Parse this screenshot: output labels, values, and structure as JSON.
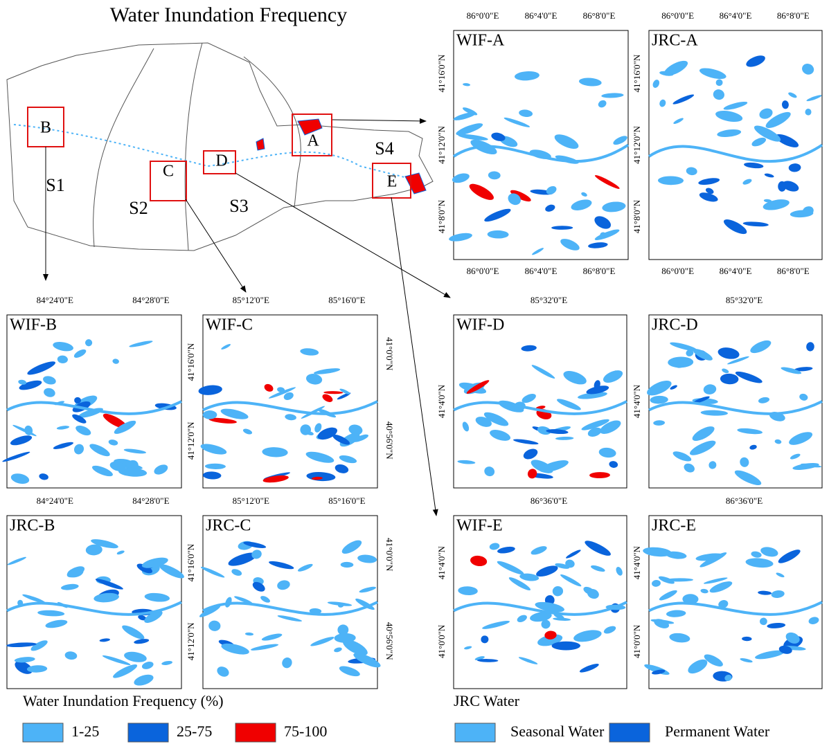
{
  "title": "Water Inundation Frequency",
  "overview": {
    "regions": [
      "S1",
      "S2",
      "S3",
      "S4"
    ],
    "boxes": [
      "A",
      "B",
      "C",
      "D",
      "E"
    ]
  },
  "panels": [
    {
      "label": "WIF-A",
      "top_ticks": [
        "86°0'0\"E",
        "86°4'0\"E",
        "86°8'0\"E"
      ],
      "bottom_ticks": [
        "86°0'0\"E",
        "86°4'0\"E",
        "86°8'0\"E"
      ],
      "left_ticks": [
        "41°16'0\"N",
        "41°12'0\"N",
        "41°8'0\"N"
      ],
      "right_ticks": []
    },
    {
      "label": "JRC-A",
      "top_ticks": [
        "86°0'0\"E",
        "86°4'0\"E",
        "86°8'0\"E"
      ],
      "bottom_ticks": [
        "86°0'0\"E",
        "86°4'0\"E",
        "86°8'0\"E"
      ],
      "left_ticks": [
        "41°16'0\"N",
        "41°12'0\"N",
        "41°8'0\"N"
      ],
      "right_ticks": []
    },
    {
      "label": "WIF-B",
      "top_ticks": [
        "84°24'0\"E",
        "84°28'0\"E"
      ],
      "bottom_ticks": [],
      "left_ticks": [],
      "right_ticks": []
    },
    {
      "label": "WIF-C",
      "top_ticks": [
        "85°12'0\"E",
        "85°16'0\"E"
      ],
      "bottom_ticks": [],
      "left_ticks": [
        "41°16'0\"N",
        "41°12'0\"N"
      ],
      "right_ticks": [
        "41°0'0\"N",
        "40°56'0\"N"
      ]
    },
    {
      "label": "JRC-B",
      "top_ticks": [
        "84°24'0\"E",
        "84°28'0\"E"
      ],
      "bottom_ticks": [],
      "left_ticks": [],
      "right_ticks": []
    },
    {
      "label": "JRC-C",
      "top_ticks": [
        "85°12'0\"E",
        "85°16'0\"E"
      ],
      "bottom_ticks": [],
      "left_ticks": [
        "41°16'0\"N",
        "41°12'0\"N"
      ],
      "right_ticks": [
        "41°0'0\"N",
        "40°56'0\"N"
      ]
    },
    {
      "label": "WIF-D",
      "top_ticks": [
        "85°32'0\"E"
      ],
      "bottom_ticks": [],
      "left_ticks": [
        "41°4'0\"N"
      ],
      "right_ticks": []
    },
    {
      "label": "JRC-D",
      "top_ticks": [
        "85°32'0\"E"
      ],
      "bottom_ticks": [],
      "left_ticks": [
        "41°4'0\"N"
      ],
      "right_ticks": []
    },
    {
      "label": "WIF-E",
      "top_ticks": [
        "86°36'0\"E"
      ],
      "bottom_ticks": [],
      "left_ticks": [
        "41°4'0\"N",
        "41°0'0\"N"
      ],
      "right_ticks": []
    },
    {
      "label": "JRC-E",
      "top_ticks": [
        "86°36'0\"E"
      ],
      "bottom_ticks": [],
      "left_ticks": [
        "41°4'0\"N",
        "41°0'0\"N"
      ],
      "right_ticks": []
    }
  ],
  "legends": [
    {
      "title": "Water Inundation Frequency (%)",
      "items": [
        {
          "label": "1-25",
          "color": "#4db3f7"
        },
        {
          "label": "25-75",
          "color": "#0a64dc"
        },
        {
          "label": "75-100",
          "color": "#f00000"
        }
      ]
    },
    {
      "title": "JRC Water",
      "items": [
        {
          "label": "Seasonal Water",
          "color": "#4db3f7"
        },
        {
          "label": "Permanent Water",
          "color": "#0a64dc"
        }
      ]
    }
  ]
}
